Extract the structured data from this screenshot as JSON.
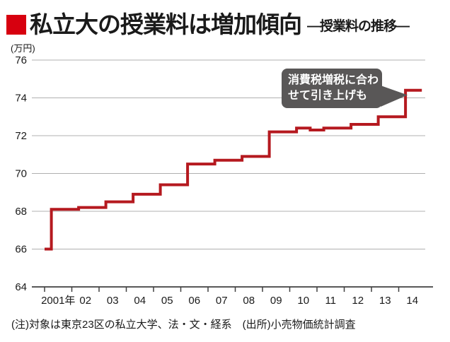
{
  "header": {
    "bullet_color": "#d7000f",
    "title": "私立大の授業料は増加傾向",
    "subtitle": "—授業料の推移—"
  },
  "y_axis": {
    "unit_label": "(万円)",
    "ticks": [
      76,
      74,
      72,
      70,
      68,
      66,
      64
    ],
    "min": 64,
    "max": 76
  },
  "x_axis": {
    "labels": [
      "2001年",
      "02",
      "03",
      "04",
      "05",
      "06",
      "07",
      "08",
      "09",
      "10",
      "11",
      "12",
      "13",
      "14"
    ]
  },
  "annotation": {
    "line1": "消費税増税に合わ",
    "line2": "せて引き上げも",
    "bg_color": "#595757",
    "text_color": "#ffffff"
  },
  "footer": {
    "note": "(注)対象は東京23区の私立大学、法・文・経系　(出所)小売物価統計調査"
  },
  "colors": {
    "line": "#b5191f",
    "grid": "#b0b0b0",
    "axis": "#404040",
    "text": "#1a1a1a"
  },
  "chart_data": {
    "type": "line",
    "subtype": "step",
    "title": "私立大の授業料は増加傾向（授業料の推移）",
    "ylabel": "万円",
    "ylim": [
      64,
      76
    ],
    "x_range": [
      2001,
      2014.85
    ],
    "grid": "horizontal-only",
    "note": "段階状に推移する月次データ。毎年4月に引き上げ。",
    "segments": [
      {
        "start": 2001.0,
        "end": 2001.25,
        "value": 66.0
      },
      {
        "start": 2001.25,
        "end": 2002.25,
        "value": 68.1
      },
      {
        "start": 2002.25,
        "end": 2003.25,
        "value": 68.2
      },
      {
        "start": 2003.25,
        "end": 2004.25,
        "value": 68.5
      },
      {
        "start": 2004.25,
        "end": 2005.25,
        "value": 68.9
      },
      {
        "start": 2005.25,
        "end": 2006.25,
        "value": 69.4
      },
      {
        "start": 2006.25,
        "end": 2007.25,
        "value": 70.5
      },
      {
        "start": 2007.25,
        "end": 2008.25,
        "value": 70.7
      },
      {
        "start": 2008.25,
        "end": 2009.25,
        "value": 70.9
      },
      {
        "start": 2009.25,
        "end": 2010.25,
        "value": 72.2
      },
      {
        "start": 2010.25,
        "end": 2010.75,
        "value": 72.4
      },
      {
        "start": 2010.75,
        "end": 2011.25,
        "value": 72.3
      },
      {
        "start": 2011.25,
        "end": 2012.25,
        "value": 72.4
      },
      {
        "start": 2012.25,
        "end": 2013.25,
        "value": 72.6
      },
      {
        "start": 2013.25,
        "end": 2014.25,
        "value": 73.0
      },
      {
        "start": 2014.25,
        "end": 2014.85,
        "value": 74.4
      }
    ]
  }
}
